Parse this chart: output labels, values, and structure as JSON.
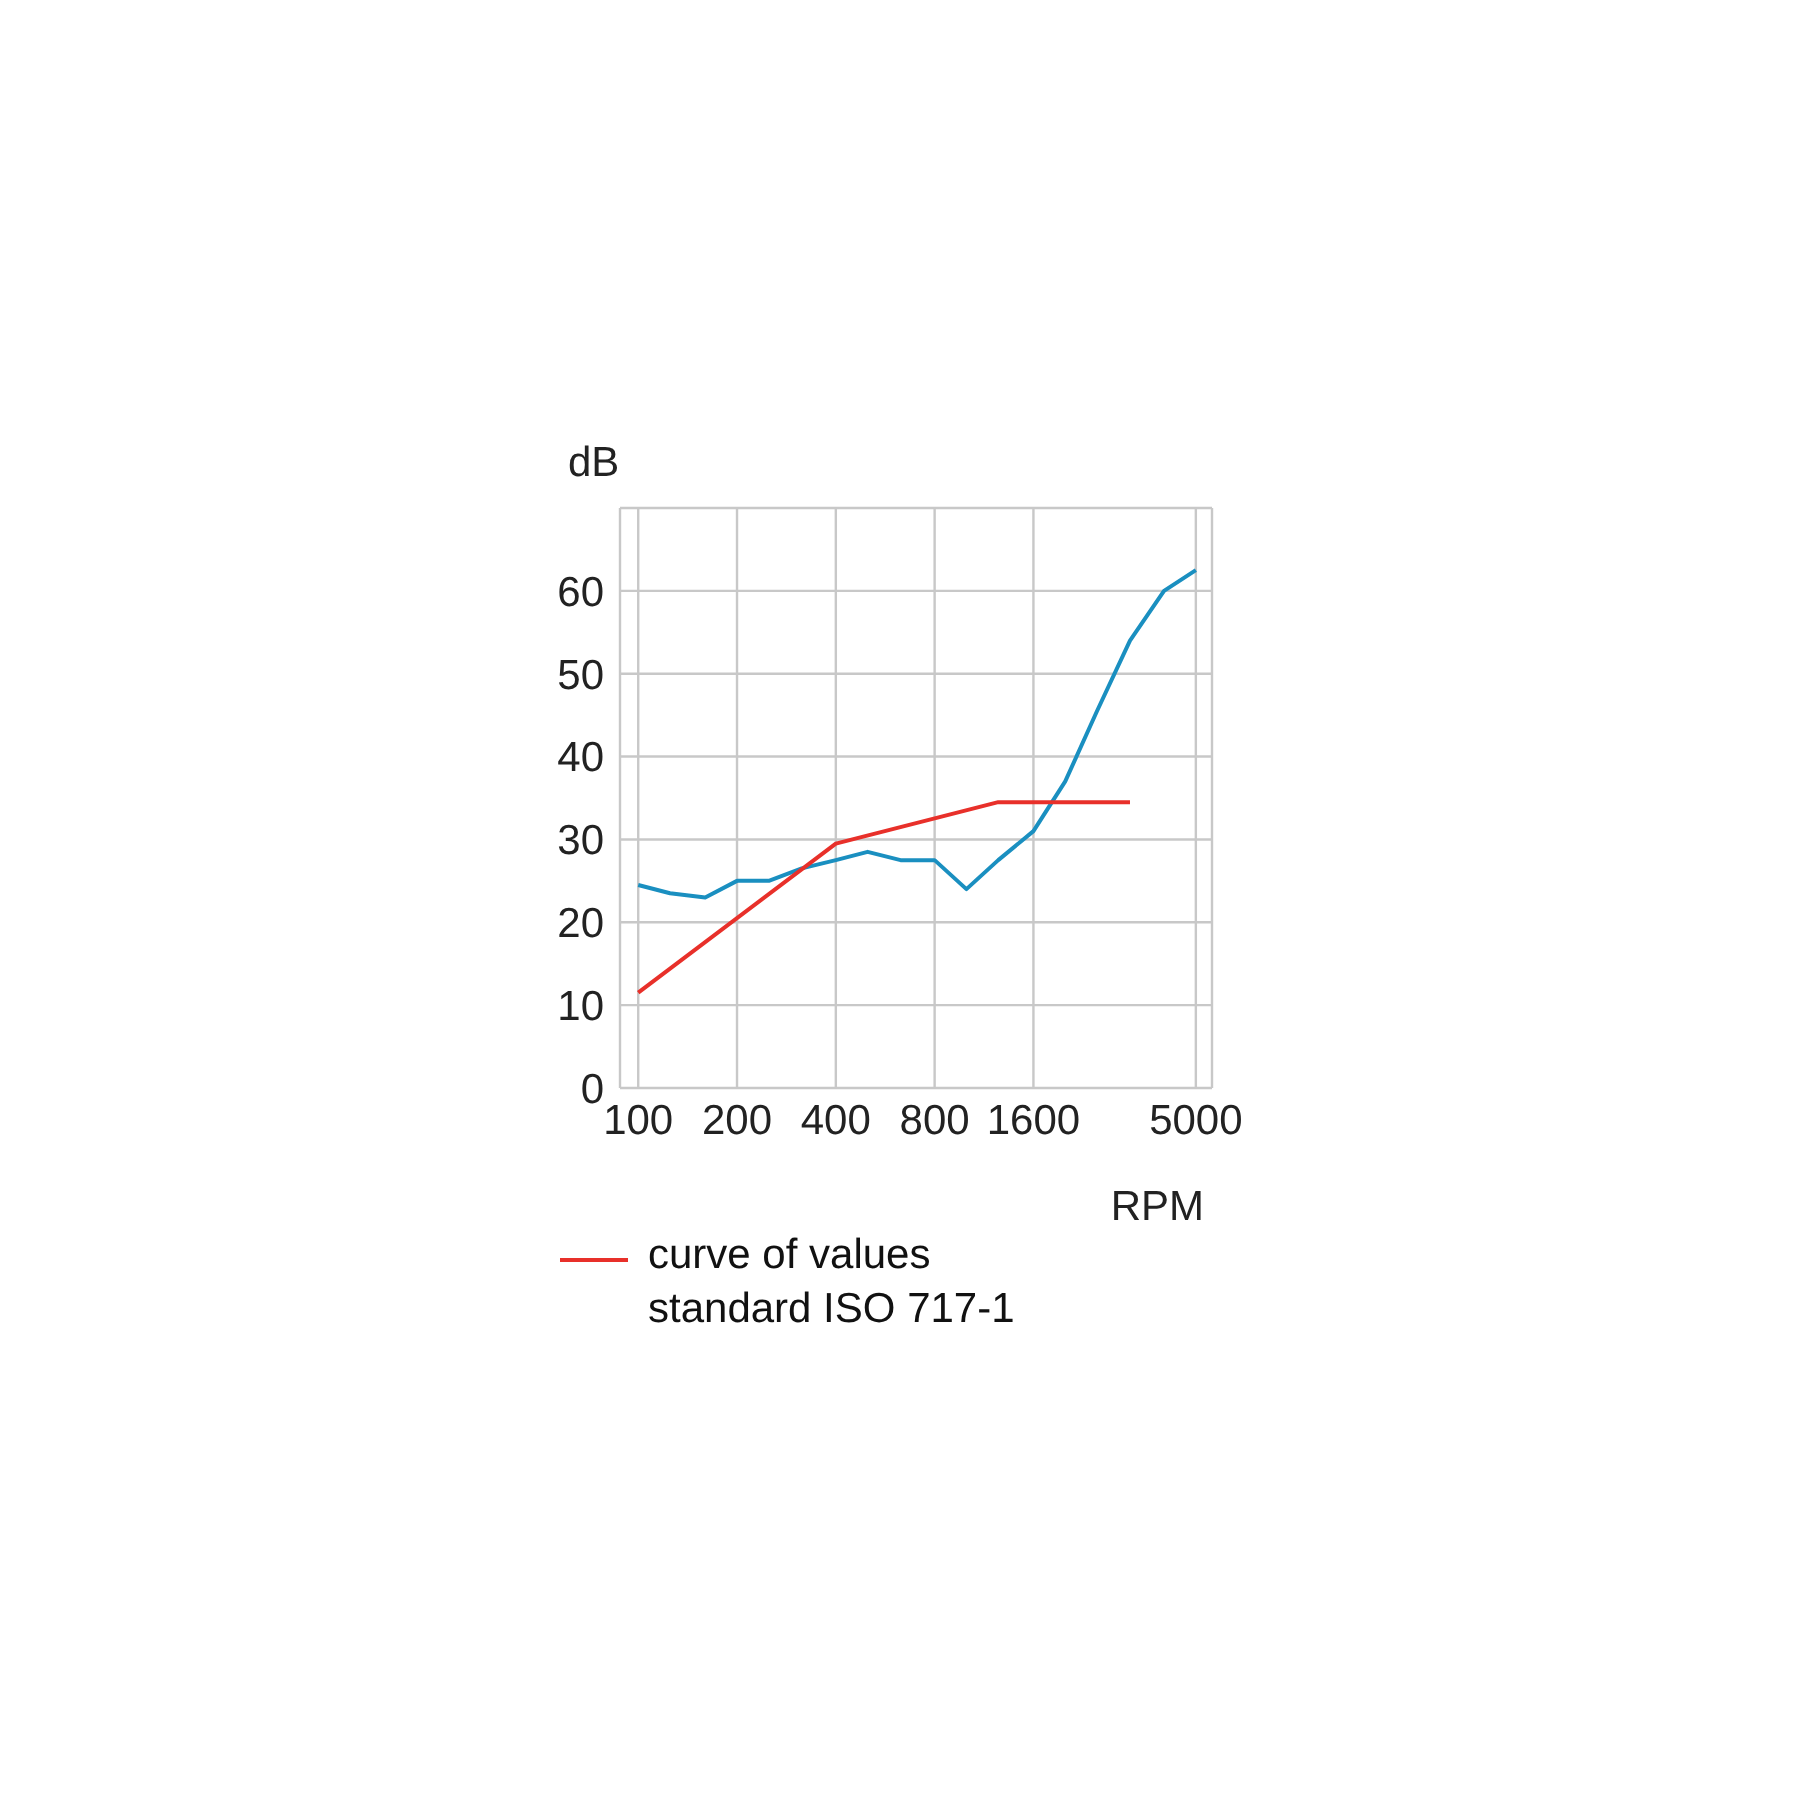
{
  "chart_data": {
    "type": "line",
    "ylabel": "dB",
    "xlabel": "RPM",
    "log": "x",
    "xlim": [
      88,
      5600
    ],
    "xticks": [
      100,
      200,
      400,
      800,
      1600,
      5000
    ],
    "ylim": [
      0,
      70
    ],
    "yticks": [
      0,
      10,
      20,
      30,
      40,
      50,
      60,
      {
        "value": 70,
        "label": null
      }
    ],
    "grid": true,
    "legend": "bottom left",
    "marker": "none",
    "line_style": "solid",
    "series": [
      {
        "color": "#1a8fc0",
        "x": [
          100,
          125,
          160,
          200,
          250,
          315,
          400,
          500,
          630,
          800,
          1000,
          1250,
          1600,
          2000,
          2500,
          3150,
          4000,
          5000
        ],
        "values": [
          24.5,
          23.5,
          23,
          25,
          25,
          26.5,
          27.5,
          28.5,
          27.5,
          27.5,
          24,
          27.5,
          31,
          37,
          45.5,
          54,
          60,
          62.5
        ]
      },
      {
        "name": "curve of values standard ISO 717-1",
        "color": "#e8302a",
        "x": [
          100,
          400,
          1250,
          3150
        ],
        "values": [
          11.5,
          29.5,
          34.5,
          34.5
        ]
      }
    ]
  }
}
